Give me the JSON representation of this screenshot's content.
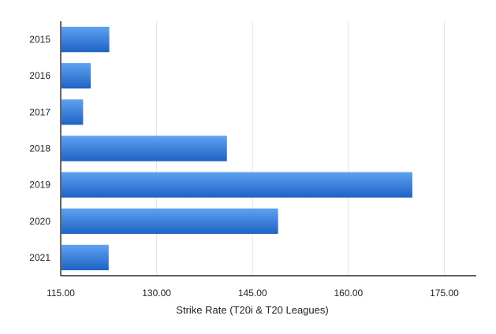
{
  "chart_data": {
    "type": "bar",
    "orientation": "horizontal",
    "title": "",
    "xlabel": "Strike Rate (T20i & T20 Leagues)",
    "ylabel": "",
    "categories": [
      "2015",
      "2016",
      "2017",
      "2018",
      "2019",
      "2020",
      "2021"
    ],
    "values": [
      122.6,
      119.7,
      118.5,
      141.0,
      170.0,
      149.0,
      122.5
    ],
    "xlim": [
      115,
      180
    ],
    "xticks": [
      "115.00",
      "130.00",
      "145.00",
      "160.00",
      "175.00"
    ],
    "grid": "vertical",
    "legend": "none",
    "colors": {
      "bar_top": "#5ea2f2",
      "bar_bottom": "#1f63c4",
      "grid": "#e3e3e3",
      "axis": "#000000"
    }
  }
}
